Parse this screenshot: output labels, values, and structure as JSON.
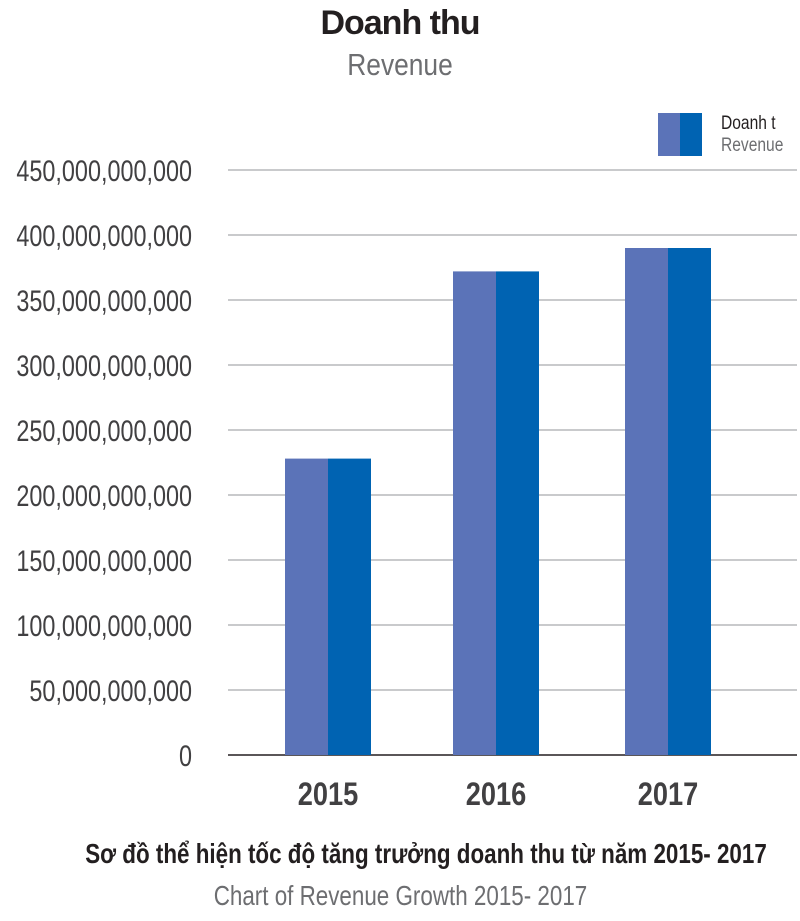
{
  "title": "Doanh thu",
  "subtitle": "Revenue",
  "legend": {
    "line1": "Doanh t",
    "line2": "Revenue"
  },
  "footer": {
    "title": "Sơ đồ thể hiện tốc độ tăng trưởng doanh thu từ năm 2015- 2017",
    "subtitle": "Chart of Revenue Growth 2015- 2017"
  },
  "colors": {
    "bar_left": "#5b73b8",
    "bar_right": "#0063b2",
    "gridline": "#939598",
    "axis_text": "#414042"
  },
  "chart_data": {
    "type": "bar",
    "title": "Doanh thu",
    "subtitle": "Revenue",
    "categories": [
      "2015",
      "2016",
      "2017"
    ],
    "series": [
      {
        "name": "Doanh t Revenue",
        "values": [
          228000000000,
          372000000000,
          390000000000
        ]
      }
    ],
    "ylim": [
      0,
      450000000000
    ],
    "ytick_step": 50000000000,
    "ytick_labels": [
      "0",
      "50,000,000,000",
      "100,000,000,000",
      "150,000,000,000",
      "200,000,000,000",
      "250,000,000,000",
      "300,000,000,000",
      "350,000,000,000",
      "400,000,000,000",
      "450,000,000,000"
    ],
    "grid": true,
    "legend_position": "top-right"
  }
}
